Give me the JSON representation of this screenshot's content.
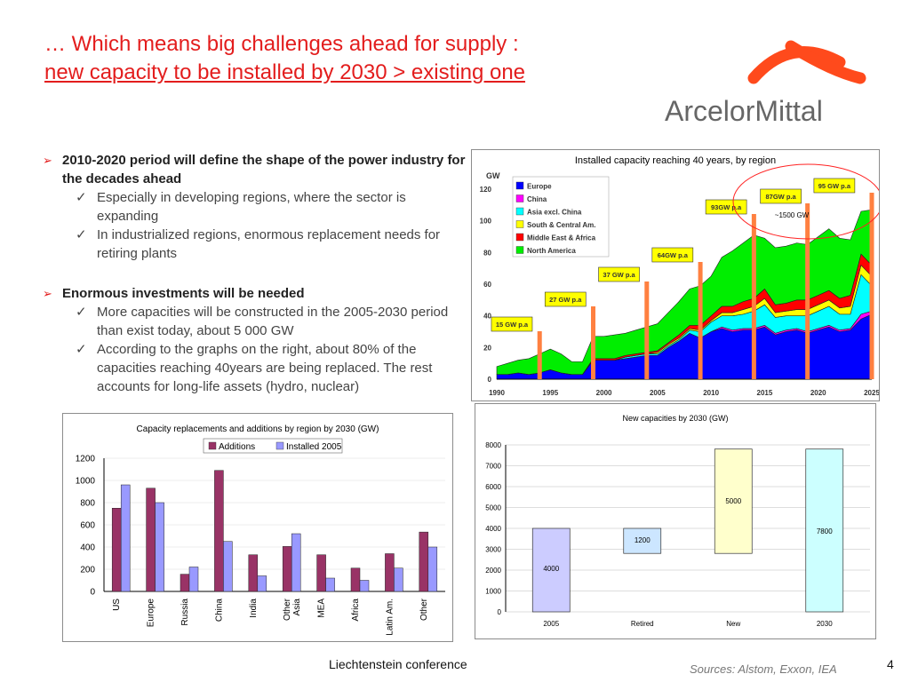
{
  "slide": {
    "title_line1": "… Which means big challenges ahead for supply :",
    "title_line2": "new capacity to be installed by 2030 > existing one",
    "logo_text": "ArcelorMittal",
    "footer": "Liechtenstein conference",
    "sources": "Sources: Alstom, Exxon, IEA",
    "page_number": "4"
  },
  "bullets": [
    {
      "text": "2010-2020 period will define the shape of the power industry for the decades ahead",
      "subs": [
        "Especially in developing regions, where the sector is expanding",
        "In industrialized regions, enormous replacement needs for retiring plants"
      ]
    },
    {
      "text": "Enormous investments will be needed",
      "subs": [
        "More capacities will be constructed in the 2005-2030 period than exist today, about 5 000 GW",
        "According to the graphs on the right, about 80% of the capacities reaching 40years are being replaced. The rest accounts for long-life assets (hydro, nuclear)"
      ]
    }
  ],
  "colors": {
    "title": "#e31d1d",
    "accent": "#ff8040"
  },
  "chart_data": [
    {
      "type": "area",
      "title": "Installed capacity reaching 40 years, by region",
      "ylabel": "GW",
      "ylim": [
        0,
        120
      ],
      "yticks": [
        0,
        20,
        40,
        60,
        80,
        100,
        120
      ],
      "xticks": [
        1990,
        1995,
        2000,
        2005,
        2010,
        2015,
        2020,
        2025
      ],
      "x": [
        1990,
        1991,
        1992,
        1993,
        1994,
        1995,
        1996,
        1997,
        1998,
        1999,
        2000,
        2001,
        2002,
        2003,
        2004,
        2005,
        2006,
        2007,
        2008,
        2009,
        2010,
        2011,
        2012,
        2013,
        2014,
        2015,
        2016,
        2017,
        2018,
        2019,
        2020,
        2021,
        2022,
        2023,
        2024,
        2025
      ],
      "series": [
        {
          "name": "Europe",
          "color": "#0000ff",
          "values": [
            3,
            3,
            4,
            3,
            4,
            6,
            4,
            3,
            3,
            12,
            12,
            12,
            13,
            14,
            15,
            15,
            20,
            24,
            29,
            26,
            30,
            32,
            30,
            31,
            31,
            33,
            28,
            30,
            31,
            29,
            31,
            33,
            30,
            31,
            38,
            41
          ]
        },
        {
          "name": "China",
          "color": "#ff00ff",
          "values": [
            0,
            0,
            0,
            0,
            0,
            0,
            0,
            0,
            0,
            0,
            0,
            0,
            0,
            0,
            0,
            0,
            0,
            0,
            0,
            0,
            0,
            1,
            1,
            1,
            1,
            1,
            1,
            1,
            1,
            1,
            1,
            1,
            1,
            1,
            3,
            2
          ]
        },
        {
          "name": "Asia excl. China",
          "color": "#00ffff",
          "values": [
            0,
            0,
            0,
            0,
            0,
            0,
            0,
            0,
            0,
            0,
            0,
            0,
            1,
            1,
            1,
            1,
            1,
            1,
            2,
            4,
            6,
            7,
            9,
            9,
            11,
            13,
            10,
            9,
            8,
            10,
            11,
            12,
            10,
            9,
            25,
            16
          ]
        },
        {
          "name": "South & Central Am.",
          "color": "#ffff00",
          "values": [
            0,
            0,
            0,
            0,
            0,
            0,
            0,
            0,
            0,
            0,
            0,
            0,
            0,
            0,
            0,
            1,
            1,
            1,
            1,
            1,
            1,
            2,
            2,
            3,
            3,
            4,
            3,
            3,
            4,
            4,
            4,
            4,
            4,
            5,
            6,
            6
          ]
        },
        {
          "name": "Middle East & Africa",
          "color": "#ff0000",
          "values": [
            0,
            0,
            0,
            0,
            0,
            0,
            0,
            0,
            0,
            1,
            1,
            1,
            1,
            1,
            1,
            1,
            1,
            2,
            2,
            3,
            3,
            4,
            4,
            5,
            5,
            6,
            5,
            5,
            6,
            6,
            6,
            6,
            6,
            7,
            7,
            7
          ]
        },
        {
          "name": "North America",
          "color": "#00ee00",
          "values": [
            5,
            7,
            8,
            10,
            12,
            13,
            12,
            8,
            8,
            14,
            14,
            15,
            14,
            15,
            16,
            17,
            19,
            21,
            23,
            25,
            25,
            31,
            35,
            37,
            40,
            32,
            36,
            36,
            36,
            35,
            37,
            39,
            38,
            35,
            27,
            35
          ]
        }
      ],
      "callouts": [
        "15 GW p.a",
        "27 GW p.a",
        "37 GW p.a",
        "64GW p.a",
        "93GW p.a",
        "87GW p.a",
        "95 GW p.a"
      ],
      "annotation": "~1500 GW"
    },
    {
      "type": "bar",
      "title": "Capacity replacements and additions by region by 2030 (GW)",
      "categories": [
        "US",
        "Europe",
        "Russia",
        "China",
        "India",
        "Other Asia",
        "MEA",
        "Africa",
        "Latin Am.",
        "Other"
      ],
      "ylim": [
        0,
        1200
      ],
      "yticks": [
        0,
        200,
        400,
        600,
        800,
        1000,
        1200
      ],
      "series": [
        {
          "name": "Additions",
          "color": "#993366",
          "values": [
            750,
            930,
            155,
            1090,
            330,
            405,
            330,
            210,
            340,
            535
          ]
        },
        {
          "name": "Installed 2005",
          "color": "#9999ff",
          "values": [
            960,
            800,
            220,
            450,
            140,
            520,
            120,
            100,
            210,
            400
          ]
        }
      ],
      "legend": "top"
    },
    {
      "type": "bar",
      "title": "New capacities by 2030 (GW)",
      "categories": [
        "2005",
        "Retired",
        "New",
        "2030"
      ],
      "ylim": [
        0,
        8000
      ],
      "yticks": [
        0,
        1000,
        2000,
        3000,
        4000,
        5000,
        6000,
        7000,
        8000
      ],
      "bars": [
        {
          "label": "4000",
          "bottom": 0,
          "top": 4000,
          "color": "#ccccff"
        },
        {
          "label": "1200",
          "bottom": 2800,
          "top": 4000,
          "color": "#cce6ff"
        },
        {
          "label": "5000",
          "bottom": 2800,
          "top": 7800,
          "color": "#ffffcc"
        },
        {
          "label": "7800",
          "bottom": 0,
          "top": 7800,
          "color": "#ccffff"
        }
      ]
    }
  ]
}
